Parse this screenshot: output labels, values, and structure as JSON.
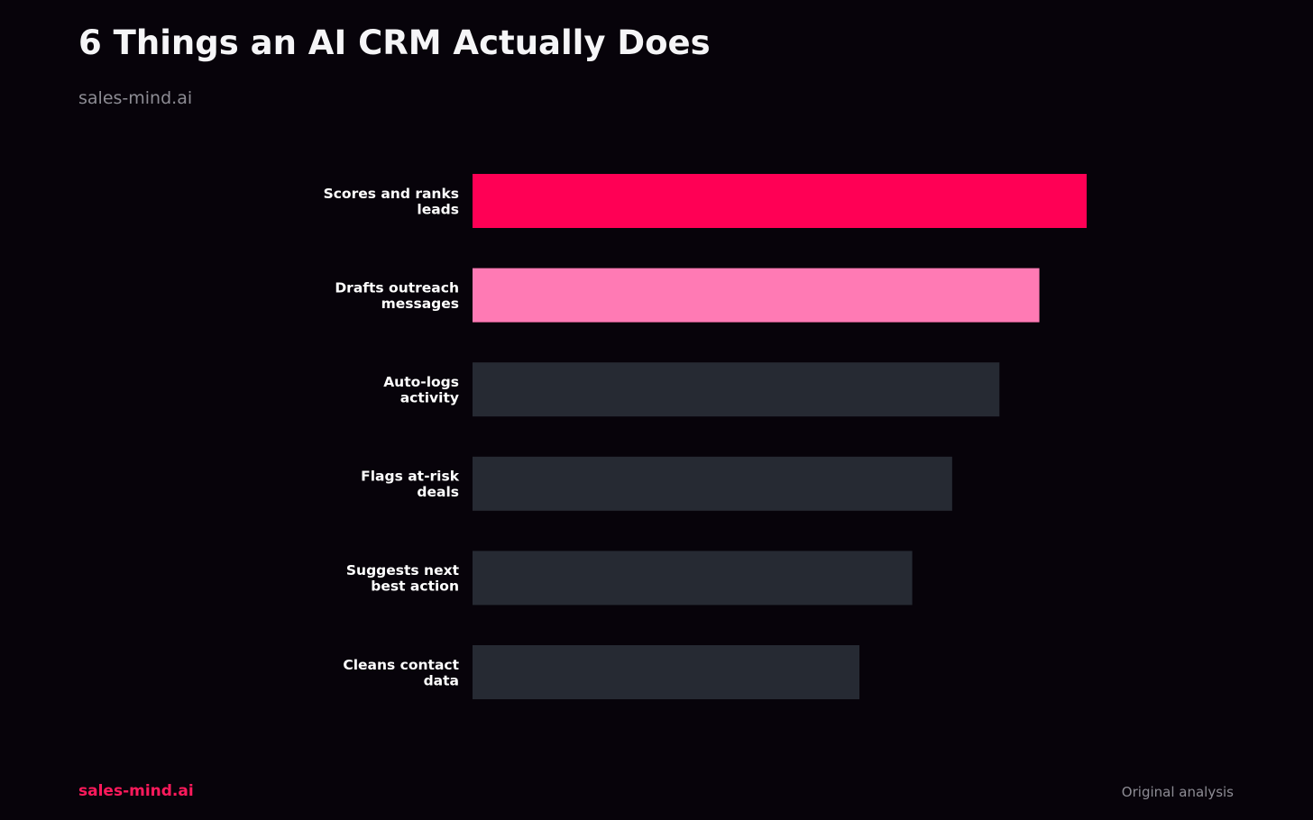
{
  "header": {
    "title": "6 Things an AI CRM Actually Does",
    "subtitle": "sales-mind.ai"
  },
  "footer": {
    "brand": "sales-mind.ai",
    "note": "Original analysis"
  },
  "colors": {
    "background": "#07030a",
    "primary": "#ff0055",
    "secondary": "#ff7ab4",
    "neutral": "#262a33",
    "text": "#ffffff",
    "muted": "#8d8c94"
  },
  "chart_data": {
    "type": "bar",
    "orientation": "horizontal",
    "categories": [
      [
        "Scores and ranks",
        "leads"
      ],
      [
        "Drafts outreach",
        "messages"
      ],
      [
        "Auto-logs",
        "activity"
      ],
      [
        "Flags at-risk",
        "deals"
      ],
      [
        "Suggests next",
        "best action"
      ],
      [
        "Cleans contact",
        "data"
      ]
    ],
    "values": [
      100,
      92.3,
      85.8,
      78.1,
      71.6,
      63
    ],
    "bar_colors": [
      "#ff0055",
      "#ff7ab4",
      "#262a33",
      "#262a33",
      "#262a33",
      "#262a33"
    ],
    "xlim": [
      0,
      100
    ],
    "grid": false,
    "legend": "none"
  }
}
